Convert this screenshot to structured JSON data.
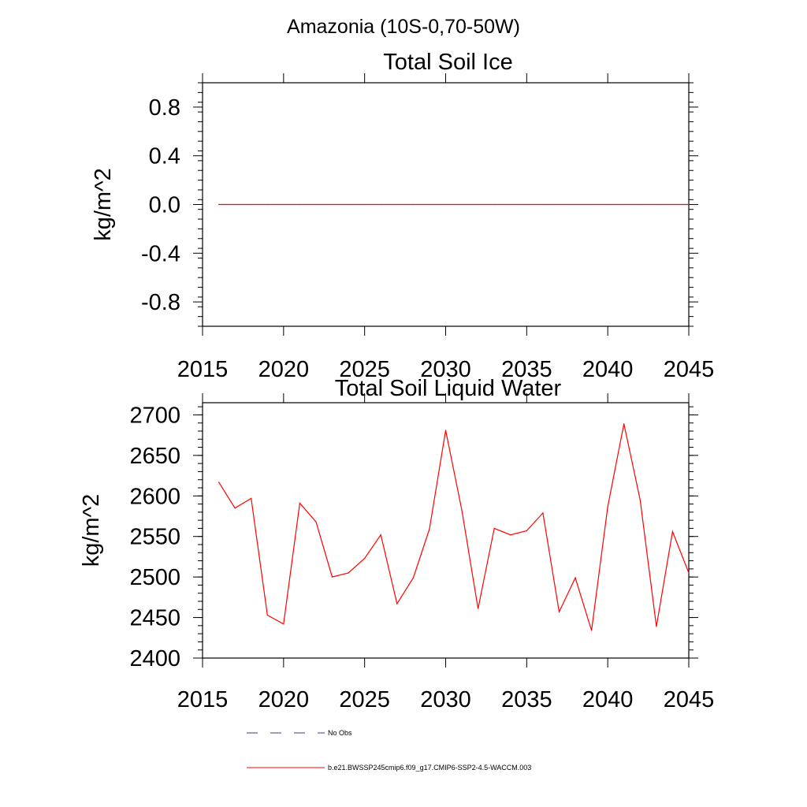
{
  "region_title": "Amazonia (10S-0,70-50W)",
  "legend": {
    "obs_label": "No Obs",
    "obs_color": "#3a3a8c",
    "model_label": "b.e21.BWSSP245cmip6.f09_g17.CMIP6-SSP2-4.5-WACCM.003",
    "model_color": "#ff0000"
  },
  "chart_data": [
    {
      "type": "line",
      "title": "Total Soil Ice",
      "xlabel": "",
      "ylabel": "kg/m^2",
      "xlim": [
        2015,
        2045
      ],
      "ylim": [
        -1.0,
        1.0
      ],
      "xticks": [
        2015,
        2020,
        2025,
        2030,
        2035,
        2040,
        2045
      ],
      "xtick_labels": [
        "2015",
        "2020",
        "2025",
        "2030",
        "2035",
        "2040",
        "2045"
      ],
      "yticks": [
        0.8,
        0.4,
        0.0,
        -0.4,
        -0.8
      ],
      "ytick_labels": [
        "0.8",
        "0.4",
        "0.0",
        "-0.4",
        "-0.8"
      ],
      "series": [
        {
          "name": "b.e21.BWSSP245cmip6.f09_g17.CMIP6-SSP2-4.5-WACCM.003",
          "color": "#ff0000",
          "x": [
            2016,
            2017,
            2018,
            2019,
            2020,
            2021,
            2022,
            2023,
            2024,
            2025,
            2026,
            2027,
            2028,
            2029,
            2030,
            2031,
            2032,
            2033,
            2034,
            2035,
            2036,
            2037,
            2038,
            2039,
            2040,
            2041,
            2042,
            2043,
            2044,
            2045
          ],
          "values": [
            0,
            0,
            0,
            0,
            0,
            0,
            0,
            0,
            0,
            0,
            0,
            0,
            0,
            0,
            0,
            0,
            0,
            0,
            0,
            0,
            0,
            0,
            0,
            0,
            0,
            0,
            0,
            0,
            0,
            0
          ]
        }
      ]
    },
    {
      "type": "line",
      "title": "Total Soil Liquid Water",
      "xlabel": "",
      "ylabel": "kg/m^2",
      "xlim": [
        2015,
        2045
      ],
      "ylim": [
        2400,
        2715
      ],
      "xticks": [
        2015,
        2020,
        2025,
        2030,
        2035,
        2040,
        2045
      ],
      "xtick_labels": [
        "2015",
        "2020",
        "2025",
        "2030",
        "2035",
        "2040",
        "2045"
      ],
      "yticks": [
        2700,
        2650,
        2600,
        2550,
        2500,
        2450,
        2400
      ],
      "ytick_labels": [
        "2700",
        "2650",
        "2600",
        "2550",
        "2500",
        "2450",
        "2400"
      ],
      "series": [
        {
          "name": "b.e21.BWSSP245cmip6.f09_g17.CMIP6-SSP2-4.5-WACCM.003",
          "color": "#ff0000",
          "x": [
            2016,
            2017,
            2018,
            2019,
            2020,
            2021,
            2022,
            2023,
            2024,
            2025,
            2026,
            2027,
            2028,
            2029,
            2030,
            2031,
            2032,
            2033,
            2034,
            2035,
            2036,
            2037,
            2038,
            2039,
            2040,
            2041,
            2042,
            2043,
            2044,
            2045
          ],
          "values": [
            2617,
            2585,
            2597,
            2453,
            2442,
            2591,
            2568,
            2500,
            2505,
            2523,
            2552,
            2467,
            2499,
            2559,
            2681,
            2582,
            2461,
            2560,
            2552,
            2557,
            2579,
            2457,
            2499,
            2434,
            2587,
            2689,
            2595,
            2439,
            2556,
            2505
          ]
        }
      ]
    }
  ]
}
